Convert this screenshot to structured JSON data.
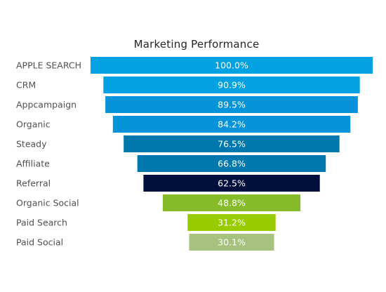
{
  "chart_data": {
    "type": "funnel",
    "title": "Marketing Performance",
    "categories": [
      "APPLE SEARCH",
      "CRM",
      "Appcampaign",
      "Organic",
      "Steady",
      "Affiliate",
      "Referral",
      "Organic Social",
      "Paid Search",
      "Paid Social"
    ],
    "values": [
      100.0,
      90.9,
      89.5,
      84.2,
      76.5,
      66.8,
      62.5,
      48.8,
      31.2,
      30.1
    ],
    "value_labels": [
      "100.0%",
      "90.9%",
      "89.5%",
      "84.2%",
      "76.5%",
      "66.8%",
      "62.5%",
      "48.8%",
      "31.2%",
      "30.1%"
    ],
    "colors": [
      "#02A1E2",
      "#02A1E2",
      "#0693D9",
      "#0693D9",
      "#0078AD",
      "#0078AD",
      "#000F3C",
      "#86BC2A",
      "#98CC00",
      "#A7C17E"
    ],
    "value_max": 100,
    "grid": false,
    "legend": "none"
  }
}
